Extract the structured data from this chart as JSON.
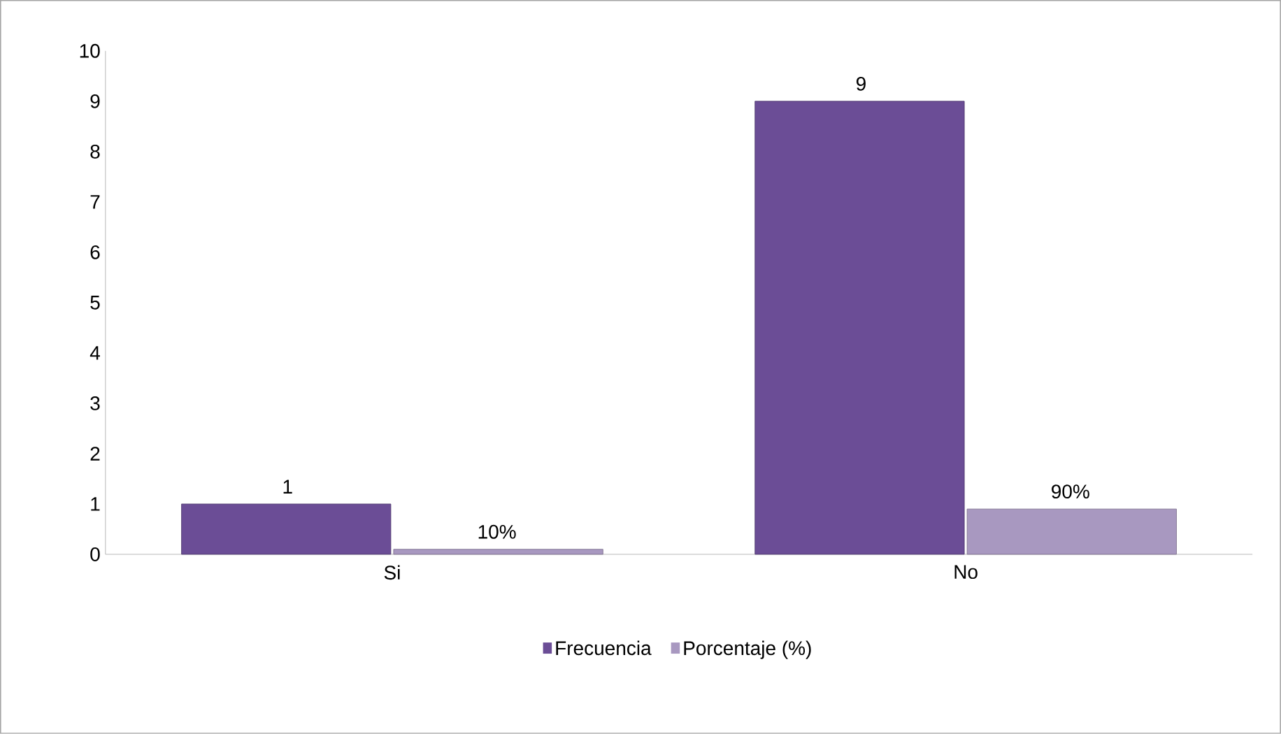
{
  "chart_data": {
    "type": "bar",
    "categories": [
      "Si",
      "No"
    ],
    "series": [
      {
        "name": "Frecuencia",
        "color": "#6b4d96",
        "values": [
          1,
          9
        ],
        "value_labels": [
          "1",
          "9"
        ]
      },
      {
        "name": "Porcentaje (%)",
        "color": "#a898c0",
        "values": [
          0.1,
          0.9
        ],
        "value_labels": [
          "10%",
          "90%"
        ]
      }
    ],
    "ylim": [
      0,
      10
    ],
    "yticks": [
      0,
      1,
      2,
      3,
      4,
      5,
      6,
      7,
      8,
      9,
      10
    ],
    "grid": false,
    "legend": "bottom"
  }
}
